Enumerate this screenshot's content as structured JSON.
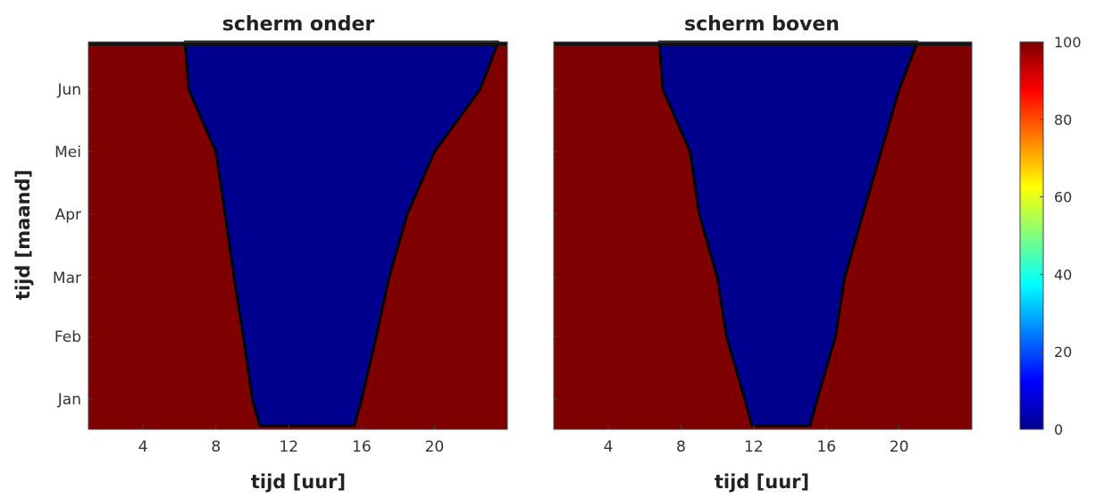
{
  "chart_data": [
    {
      "type": "heatmap",
      "title": "scherm onder",
      "xlabel": "tijd [uur]",
      "ylabel": "tijd [maand]",
      "xlim": [
        1,
        24
      ],
      "x_ticks": [
        "4",
        "8",
        "12",
        "16",
        "20"
      ],
      "y_ticks": [
        "Jan",
        "Feb",
        "Mar",
        "Apr",
        "Mei",
        "Jun"
      ],
      "approx_boundary_rows": [
        {
          "month": "Jun",
          "dark_end_hour": 6.5,
          "dark_start_hour": 22.5
        },
        {
          "month": "Mei",
          "dark_end_hour": 8.0,
          "dark_start_hour": 20.0
        },
        {
          "month": "Apr",
          "dark_end_hour": 8.5,
          "dark_start_hour": 18.5
        },
        {
          "month": "Mar",
          "dark_end_hour": 9.0,
          "dark_start_hour": 17.5
        },
        {
          "month": "Feb",
          "dark_end_hour": 9.5,
          "dark_start_hour": 16.8
        },
        {
          "month": "Jan",
          "dark_end_hour": 10.0,
          "dark_start_hour": 16.0
        }
      ],
      "value_closed": 100,
      "value_open": 0
    },
    {
      "type": "heatmap",
      "title": "scherm boven",
      "xlabel": "tijd [uur]",
      "xlim": [
        1,
        24
      ],
      "x_ticks": [
        "4",
        "8",
        "12",
        "16",
        "20"
      ],
      "approx_boundary_rows": [
        {
          "month": "Jun",
          "dark_end_hour": 7.0,
          "dark_start_hour": 20.0
        },
        {
          "month": "Mei",
          "dark_end_hour": 8.5,
          "dark_start_hour": 19.0
        },
        {
          "month": "Apr",
          "dark_end_hour": 9.0,
          "dark_start_hour": 18.0
        },
        {
          "month": "Mar",
          "dark_end_hour": 10.0,
          "dark_start_hour": 17.0
        },
        {
          "month": "Feb",
          "dark_end_hour": 10.5,
          "dark_start_hour": 16.5
        },
        {
          "month": "Jan",
          "dark_end_hour": 11.5,
          "dark_start_hour": 15.5
        }
      ],
      "value_closed": 100,
      "value_open": 0
    }
  ],
  "colorbar": {
    "range": [
      0,
      100
    ],
    "ticks": [
      "0",
      "20",
      "40",
      "60",
      "80",
      "100"
    ],
    "colormap": "jet"
  },
  "colors": {
    "closed": "#7f0000",
    "open": "#00008f",
    "edge": "#000000"
  }
}
